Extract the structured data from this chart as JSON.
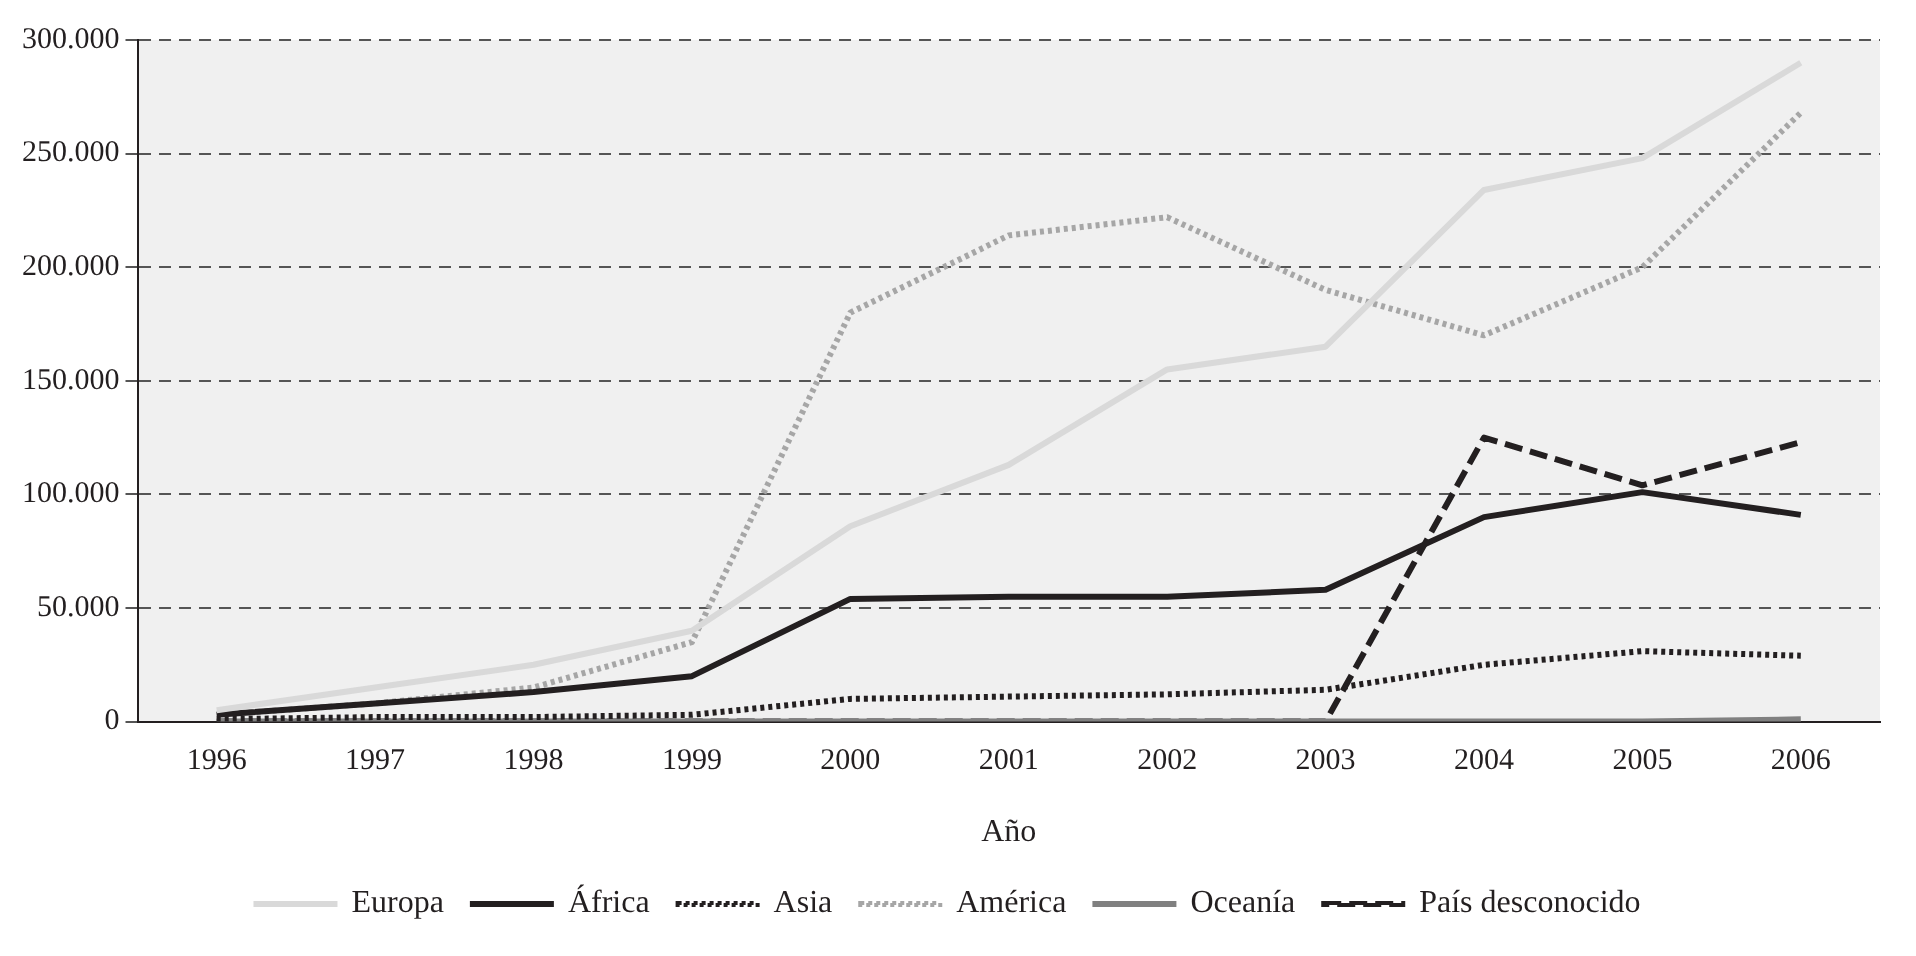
{
  "chart_data": {
    "type": "line",
    "xlabel": "Año",
    "categories": [
      "1996",
      "1997",
      "1998",
      "1999",
      "2000",
      "2001",
      "2002",
      "2003",
      "2004",
      "2005",
      "2006"
    ],
    "series": [
      {
        "name": "Europa",
        "color": "#d9d9d9",
        "line_style": "solid",
        "values": [
          5000,
          15000,
          25000,
          40000,
          86000,
          113000,
          155000,
          165000,
          234000,
          248000,
          290000
        ]
      },
      {
        "name": "África",
        "color": "#231f20",
        "line_style": "solid",
        "values": [
          3000,
          8000,
          13000,
          20000,
          54000,
          55000,
          55000,
          58000,
          90000,
          101000,
          91000
        ]
      },
      {
        "name": "Asia",
        "color": "#231f20",
        "line_style": "dotted",
        "values": [
          1000,
          2000,
          2000,
          3000,
          10000,
          11000,
          12000,
          14000,
          25000,
          31000,
          29000
        ]
      },
      {
        "name": "América",
        "color": "#a6a6a6",
        "line_style": "dotted",
        "values": [
          3000,
          8000,
          15000,
          35000,
          180000,
          214000,
          222000,
          190000,
          170000,
          200000,
          268000
        ]
      },
      {
        "name": "Oceanía",
        "color": "#808080",
        "line_style": "solid",
        "values": [
          0,
          0,
          0,
          0,
          0,
          0,
          0,
          0,
          0,
          0,
          1000
        ]
      },
      {
        "name": "País desconocido",
        "color": "#231f20",
        "line_style": "dashed",
        "values": [
          0,
          0,
          0,
          0,
          0,
          0,
          0,
          0,
          125000,
          104000,
          123000
        ]
      }
    ],
    "ylim": [
      0,
      300000
    ],
    "yticks": [
      {
        "value": 0,
        "label": "0"
      },
      {
        "value": 50000,
        "label": "50.000"
      },
      {
        "value": 100000,
        "label": "100.000"
      },
      {
        "value": 150000,
        "label": "150.000"
      },
      {
        "value": 200000,
        "label": "200.000"
      },
      {
        "value": 250000,
        "label": "250.000"
      },
      {
        "value": 300000,
        "label": "300.000"
      }
    ],
    "grid": "y",
    "legend": "bottom",
    "marker": "none"
  }
}
